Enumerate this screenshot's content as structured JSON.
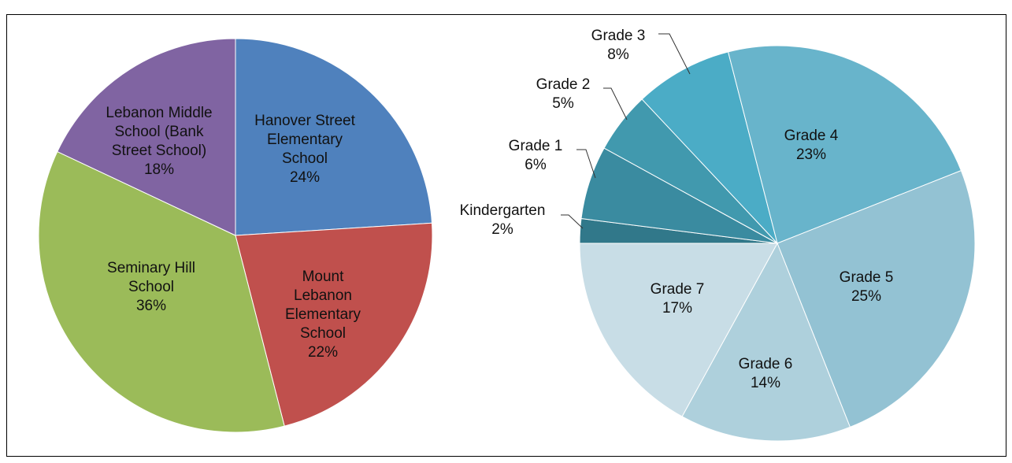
{
  "chart_data": [
    {
      "type": "pie",
      "categories": [
        "Hanover Street Elementary School",
        "Mount Lebanon Elementary School",
        "Seminary Hill School",
        "Lebanon Middle School (Bank Street School)"
      ],
      "values": [
        24,
        22,
        36,
        18
      ],
      "value_labels": [
        "24%",
        "22%",
        "36%",
        "18%"
      ],
      "colors": [
        "#4f81bd",
        "#c0504d",
        "#9bbb59",
        "#8064a2"
      ]
    },
    {
      "type": "pie",
      "categories": [
        "Kindergarten",
        "Grade 1",
        "Grade 2",
        "Grade 3",
        "Grade 4",
        "Grade 5",
        "Grade 6",
        "Grade 7"
      ],
      "values": [
        2,
        6,
        5,
        8,
        23,
        25,
        14,
        17
      ],
      "value_labels": [
        "2%",
        "6%",
        "5%",
        "8%",
        "23%",
        "25%",
        "14%",
        "17%"
      ],
      "colors": [
        "#31788a",
        "#3a8ba0",
        "#4199ae",
        "#4bacc6",
        "#68b4cb",
        "#93c2d3",
        "#aed0dc",
        "#c8dde6"
      ]
    }
  ]
}
